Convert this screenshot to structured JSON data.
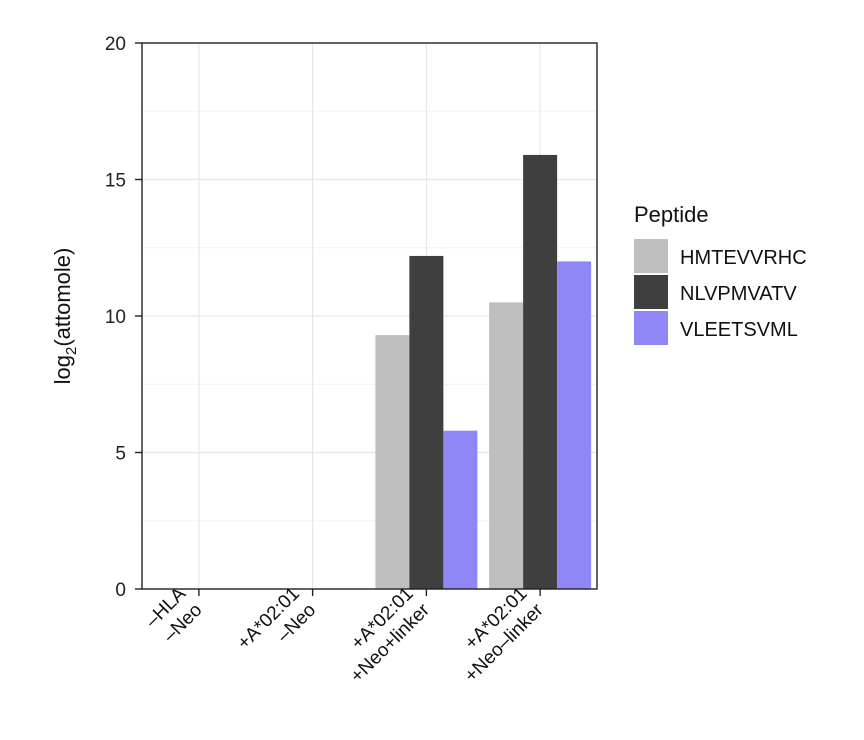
{
  "chart_data": {
    "type": "bar",
    "ylabel_main": "log",
    "ylabel_sub": "2",
    "ylabel_rest": "(attomole)",
    "ylim": [
      0,
      20
    ],
    "yticks": [
      0,
      5,
      10,
      15,
      20
    ],
    "grid": true,
    "legend_position": "right",
    "legend_title": "Peptide",
    "categories": [
      [
        "–HLA",
        "–Neo"
      ],
      [
        "+A*02:01",
        "–Neo"
      ],
      [
        "+A*02:01",
        "+Neo+linker"
      ],
      [
        "+A*02:01",
        "+Neo–linker"
      ]
    ],
    "series": [
      {
        "name": "HMTEVVRHC",
        "color": "#bfbfbf",
        "values": [
          0,
          0,
          9.3,
          10.5
        ]
      },
      {
        "name": "NLVPMVATV",
        "color": "#3f3f3f",
        "values": [
          0,
          0,
          12.2,
          15.9
        ]
      },
      {
        "name": "VLEETSVML",
        "color": "#8f86f7",
        "values": [
          0,
          0,
          5.8,
          12.0
        ]
      }
    ]
  }
}
